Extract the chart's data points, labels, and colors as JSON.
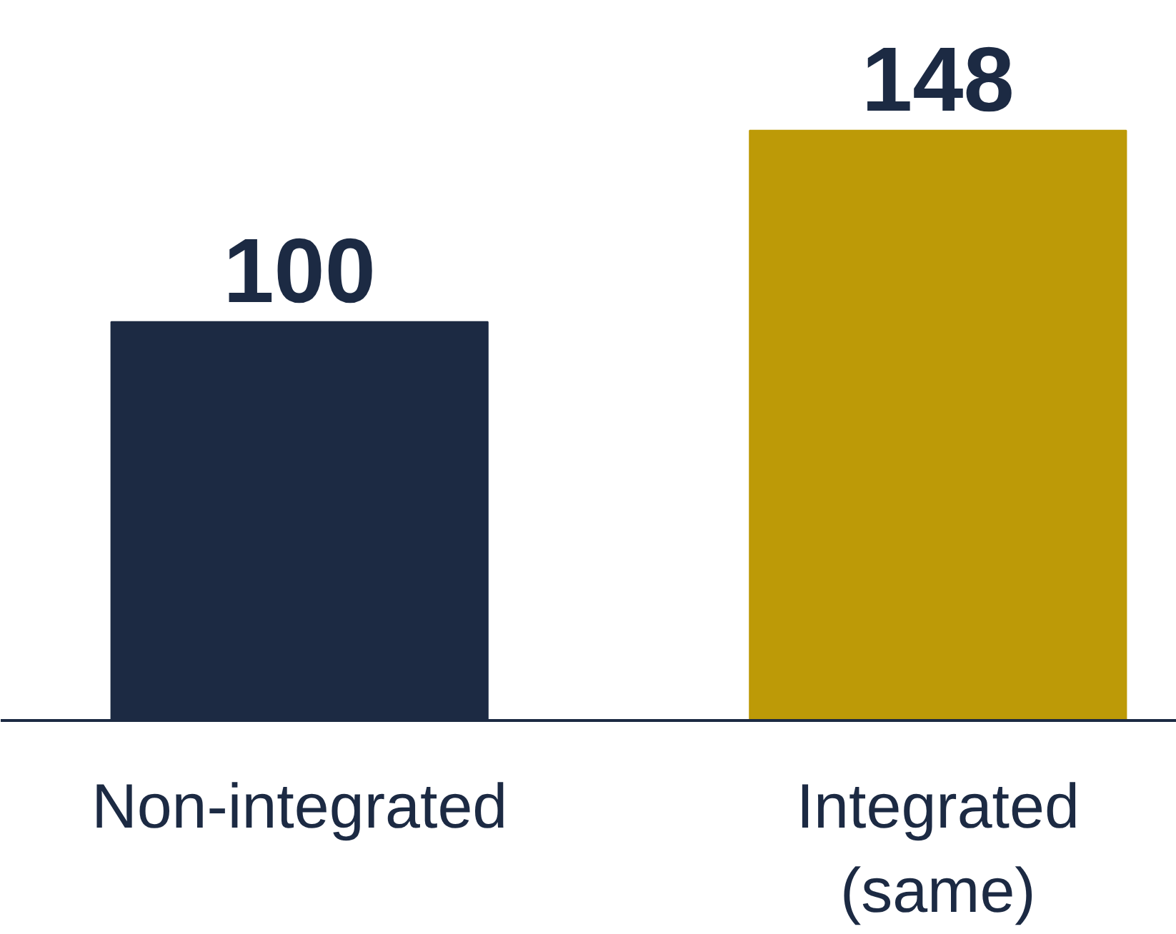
{
  "chart_data": {
    "type": "bar",
    "categories": [
      "Non-integrated",
      "Integrated (same)"
    ],
    "values": [
      100,
      148
    ],
    "colors": [
      "#1c2a43",
      "#bd9a07"
    ],
    "data_labels": true
  }
}
